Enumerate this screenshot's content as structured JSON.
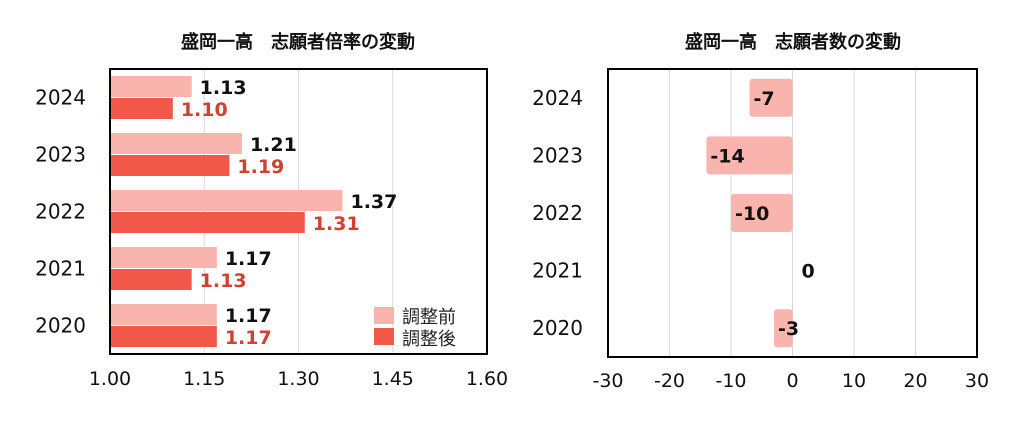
{
  "colors": {
    "before": "#f9b4ad",
    "after": "#f2584a",
    "after_text": "#d2402f",
    "text": "#111111",
    "grid": "#d9d9d9",
    "frame": "#000000"
  },
  "chart_data": [
    {
      "type": "bar",
      "orientation": "horizontal",
      "title": "盛岡一高　志願者倍率の変動",
      "categories": [
        "2024",
        "2023",
        "2022",
        "2021",
        "2020"
      ],
      "series": [
        {
          "name": "調整前",
          "values": [
            1.13,
            1.21,
            1.37,
            1.17,
            1.17
          ],
          "labels": [
            "1.13",
            "1.21",
            "1.37",
            "1.17",
            "1.17"
          ]
        },
        {
          "name": "調整後",
          "values": [
            1.1,
            1.19,
            1.31,
            1.13,
            1.17
          ],
          "labels": [
            "1.10",
            "1.19",
            "1.31",
            "1.13",
            "1.17"
          ]
        }
      ],
      "xlim": [
        1.0,
        1.6
      ],
      "xticks": [
        "1.00",
        "1.15",
        "1.30",
        "1.45",
        "1.60"
      ],
      "xtick_values": [
        1.0,
        1.15,
        1.3,
        1.45,
        1.6
      ],
      "grid": true,
      "legend": "bottom-right"
    },
    {
      "type": "bar",
      "orientation": "horizontal",
      "title": "盛岡一高　志願者数の変動",
      "categories": [
        "2024",
        "2023",
        "2022",
        "2021",
        "2020"
      ],
      "values": [
        -7,
        -14,
        -10,
        0,
        -3
      ],
      "labels": [
        "-7",
        "-14",
        "-10",
        "0",
        "-3"
      ],
      "xlim": [
        -30,
        30
      ],
      "xticks": [
        "-30",
        "-20",
        "-10",
        "0",
        "10",
        "20",
        "30"
      ],
      "xtick_values": [
        -30,
        -20,
        -10,
        0,
        10,
        20,
        30
      ],
      "grid": true
    }
  ]
}
